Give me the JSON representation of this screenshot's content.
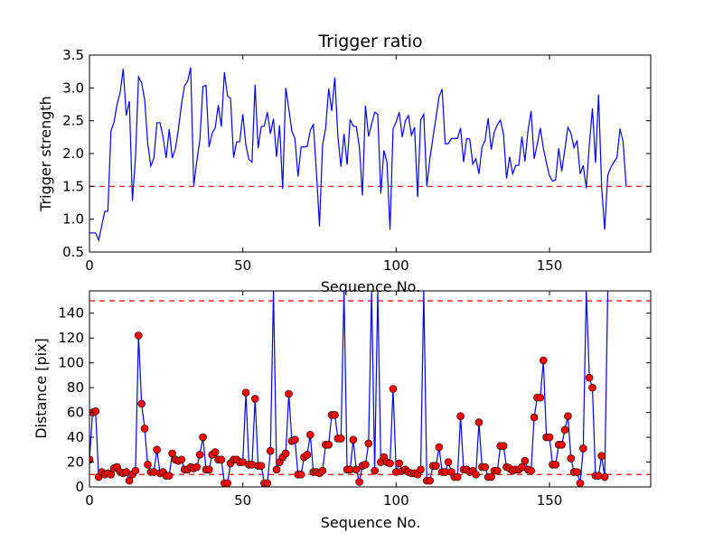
{
  "chart_data": [
    {
      "type": "line",
      "title": "Trigger ratio",
      "xlabel": "Sequence No.",
      "ylabel": "Trigger strength",
      "xlim": [
        0,
        183
      ],
      "ylim": [
        0.5,
        3.5
      ],
      "xticks": [
        0,
        50,
        100,
        150
      ],
      "yticks": [
        0.5,
        1.0,
        1.5,
        2.0,
        2.5,
        3.0,
        3.5
      ],
      "xtick_labels": [
        "0",
        "50",
        "100",
        "150"
      ],
      "ytick_labels": [
        "0.5",
        "1.0",
        "1.5",
        "2.0",
        "2.5",
        "3.0",
        "3.5"
      ],
      "threshold": 1.5,
      "colors": {
        "line": "#0000ff",
        "threshold": "#ff0000"
      },
      "series": [
        {
          "values": [
            0.79,
            0.79,
            0.79,
            0.68,
            0.9,
            1.12,
            1.12,
            2.34,
            2.48,
            2.75,
            2.93,
            3.29,
            2.58,
            2.8,
            1.28,
            1.93,
            3.17,
            3.08,
            2.82,
            2.15,
            1.81,
            1.93,
            2.47,
            2.47,
            2.25,
            1.93,
            2.37,
            1.93,
            2.07,
            2.37,
            2.75,
            3.03,
            3.1,
            3.31,
            1.51,
            1.88,
            2.21,
            3.02,
            3.04,
            2.1,
            2.31,
            2.39,
            2.74,
            2.41,
            3.24,
            2.88,
            2.84,
            1.94,
            2.18,
            2.18,
            2.6,
            2.13,
            1.91,
            1.87,
            3.05,
            2.08,
            2.41,
            2.42,
            2.63,
            2.3,
            2.53,
            1.95,
            2.43,
            1.46,
            3.0,
            2.68,
            2.34,
            2.23,
            1.65,
            2.1,
            2.1,
            2.11,
            2.35,
            2.45,
            1.72,
            0.89,
            2.13,
            2.38,
            2.99,
            2.65,
            3.16,
            2.26,
            1.8,
            2.3,
            1.83,
            2.52,
            2.42,
            2.41,
            2.1,
            1.36,
            2.73,
            2.26,
            2.45,
            2.63,
            2.6,
            1.39,
            2.05,
            1.87,
            0.84,
            2.38,
            2.48,
            2.63,
            2.25,
            2.5,
            2.58,
            2.28,
            2.4,
            1.34,
            2.51,
            2.6,
            1.5,
            1.92,
            2.24,
            2.55,
            2.87,
            2.98,
            2.15,
            2.15,
            2.23,
            2.23,
            2.23,
            2.39,
            1.87,
            2.23,
            2.22,
            1.84,
            1.92,
            1.69,
            2.1,
            2.2,
            2.54,
            2.06,
            2.33,
            2.44,
            2.51,
            2.3,
            1.62,
            1.95,
            1.69,
            1.82,
            1.82,
            2.26,
            1.88,
            2.35,
            2.65,
            1.92,
            2.14,
            2.39,
            2.08,
            1.86,
            1.66,
            1.58,
            1.6,
            2.08,
            1.73,
            2.06,
            2.4,
            2.31,
            2.09,
            2.2,
            1.69,
            1.82,
            1.47,
            2.14,
            2.69,
            1.86,
            2.9,
            1.49,
            0.84,
            1.67,
            1.79,
            1.87,
            1.94,
            2.38,
            2.18,
            1.5
          ]
        }
      ]
    },
    {
      "type": "line",
      "title": "",
      "xlabel": "Sequence No.",
      "ylabel": "Distance [pix]",
      "xlim": [
        0,
        183
      ],
      "ylim": [
        0,
        158
      ],
      "xticks": [
        0,
        50,
        100,
        150
      ],
      "yticks": [
        0,
        20,
        40,
        60,
        80,
        100,
        120,
        140
      ],
      "xtick_labels": [
        "0",
        "50",
        "100",
        "150"
      ],
      "ytick_labels": [
        "0",
        "20",
        "40",
        "60",
        "80",
        "100",
        "120",
        "140"
      ],
      "thresholds": [
        10,
        150
      ],
      "colors": {
        "line": "#0000ff",
        "marker": "#ff0000",
        "threshold": "#ff0000"
      },
      "series": [
        {
          "values": [
            22,
            60,
            61,
            8,
            12,
            10,
            11,
            10,
            15,
            16,
            12,
            11,
            12,
            5,
            10,
            13,
            122,
            67,
            47,
            18,
            12,
            12,
            30,
            11,
            12,
            9,
            9,
            27,
            22,
            21,
            22,
            14,
            14,
            16,
            15,
            16,
            26,
            40,
            14,
            14,
            26,
            28,
            22,
            22,
            3,
            3,
            19,
            22,
            22,
            20,
            20,
            76,
            18,
            18,
            71,
            17,
            17,
            3,
            3,
            29,
            158,
            14,
            20,
            24,
            27,
            75,
            37,
            38,
            10,
            10,
            24,
            26,
            42,
            12,
            12,
            11,
            13,
            34,
            34,
            58,
            58,
            39,
            39,
            158,
            14,
            14,
            38,
            14,
            4,
            17,
            18,
            35,
            158,
            13,
            158,
            20,
            24,
            20,
            19,
            79,
            12,
            19,
            13,
            14,
            12,
            11,
            11,
            10,
            14,
            158,
            5,
            5,
            17,
            17,
            32,
            12,
            12,
            20,
            12,
            8,
            8,
            57,
            14,
            14,
            12,
            13,
            10,
            52,
            16,
            16,
            8,
            8,
            13,
            13,
            33,
            33,
            16,
            15,
            13,
            14,
            14,
            16,
            21,
            14,
            13,
            56,
            72,
            72,
            102,
            40,
            40,
            18,
            18,
            34,
            34,
            46,
            57,
            23,
            12,
            12,
            3,
            31,
            158,
            88,
            80,
            9,
            9,
            25,
            8,
            158
          ]
        }
      ]
    }
  ]
}
